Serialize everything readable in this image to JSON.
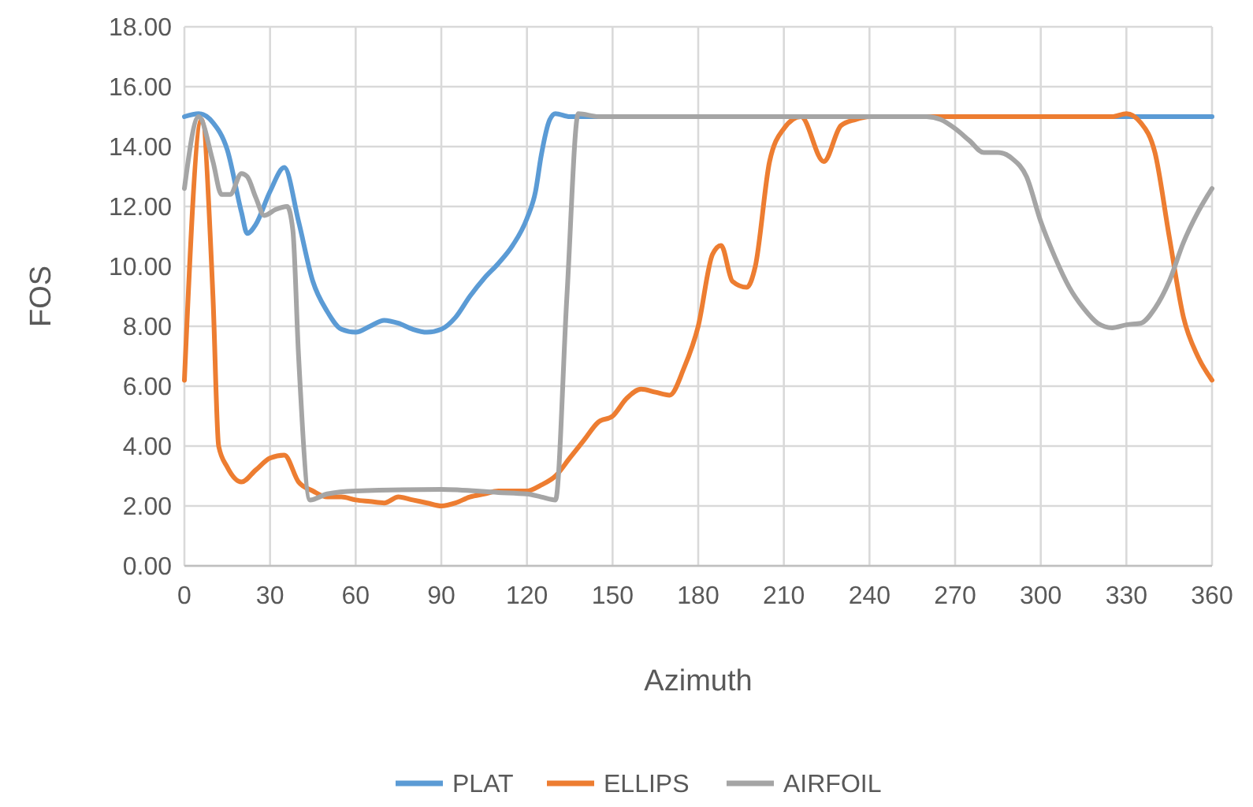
{
  "chart_data": {
    "type": "line",
    "xlabel": "Azimuth",
    "ylabel": "FOS",
    "xlim": [
      0,
      360
    ],
    "ylim": [
      0,
      18
    ],
    "xticks": [
      0,
      30,
      60,
      90,
      120,
      150,
      180,
      210,
      240,
      270,
      300,
      330,
      360
    ],
    "yticks": [
      {
        "value": 0,
        "label": "0.00"
      },
      {
        "value": 2,
        "label": "2.00"
      },
      {
        "value": 4,
        "label": "4.00"
      },
      {
        "value": 6,
        "label": "6.00"
      },
      {
        "value": 8,
        "label": "8.00"
      },
      {
        "value": 10,
        "label": "10.00"
      },
      {
        "value": 12,
        "label": "12.00"
      },
      {
        "value": 14,
        "label": "14.00"
      },
      {
        "value": 16,
        "label": "16.00"
      },
      {
        "value": 18,
        "label": "18.00"
      }
    ],
    "grid": true,
    "legend": "bottom",
    "marker": "none",
    "line_style": "solid",
    "series": [
      {
        "name": "PLAT",
        "color": "#5b9bd5",
        "x": [
          0,
          5,
          10,
          15,
          20,
          22,
          25,
          30,
          35,
          40,
          45,
          50,
          55,
          60,
          65,
          70,
          75,
          80,
          85,
          90,
          95,
          100,
          105,
          110,
          115,
          120,
          123,
          125,
          128,
          130,
          135,
          330,
          360
        ],
        "values": [
          15,
          15.1,
          14.8,
          13.9,
          11.8,
          11.1,
          11.4,
          12.5,
          13.3,
          11.5,
          9.5,
          8.5,
          7.9,
          7.8,
          8,
          8.2,
          8.1,
          7.9,
          7.8,
          7.9,
          8.3,
          9,
          9.6,
          10.1,
          10.7,
          11.6,
          12.5,
          13.7,
          14.9,
          15.1,
          15,
          15,
          15
        ]
      },
      {
        "name": "ELLIPS",
        "color": "#ed7d31",
        "x": [
          0,
          6,
          10,
          12,
          15,
          20,
          25,
          30,
          35,
          40,
          45,
          50,
          55,
          60,
          65,
          70,
          75,
          80,
          85,
          90,
          95,
          100,
          105,
          110,
          120,
          125,
          130,
          135,
          140,
          145,
          150,
          155,
          160,
          165,
          170,
          175,
          180,
          185,
          188,
          192,
          197,
          200,
          205,
          210,
          216,
          224,
          230,
          235,
          240,
          280,
          325,
          330,
          335,
          340,
          345,
          350,
          355,
          360
        ],
        "values": [
          6.2,
          14.9,
          9,
          4,
          3.3,
          2.8,
          3.2,
          3.6,
          3.7,
          2.8,
          2.5,
          2.3,
          2.3,
          2.2,
          2.15,
          2.1,
          2.3,
          2.2,
          2.1,
          2,
          2.1,
          2.3,
          2.4,
          2.5,
          2.5,
          2.7,
          3,
          3.6,
          4.2,
          4.8,
          5,
          5.6,
          5.9,
          5.8,
          5.7,
          6.6,
          8,
          10.4,
          10.7,
          9.5,
          9.3,
          10,
          13.5,
          14.6,
          15,
          13.5,
          14.7,
          14.9,
          15,
          15,
          15,
          15.1,
          14.8,
          13.8,
          11,
          8.3,
          7,
          6.2
        ]
      },
      {
        "name": "AIRFOIL",
        "color": "#a5a5a5",
        "x": [
          0,
          5,
          10,
          13,
          16,
          20,
          22,
          25,
          28,
          32,
          36,
          38,
          40,
          44,
          50,
          60,
          90,
          110,
          120,
          125,
          130,
          134,
          138,
          145,
          200,
          260,
          265,
          270,
          275,
          280,
          285,
          290,
          295,
          300,
          305,
          310,
          315,
          320,
          325,
          330,
          335,
          340,
          345,
          350,
          355,
          360
        ],
        "values": [
          12.6,
          15,
          13.5,
          12.4,
          12.4,
          13.1,
          13,
          12.3,
          11.7,
          11.9,
          12,
          11.2,
          7,
          2.2,
          2.4,
          2.5,
          2.55,
          2.45,
          2.4,
          2.3,
          2.2,
          9,
          15.1,
          15,
          15,
          15,
          14.9,
          14.6,
          14.2,
          13.8,
          13.8,
          13.6,
          13,
          11.5,
          10.3,
          9.3,
          8.6,
          8.1,
          7.95,
          8.05,
          8.1,
          8.6,
          9.5,
          10.8,
          11.8,
          12.6
        ]
      }
    ]
  }
}
